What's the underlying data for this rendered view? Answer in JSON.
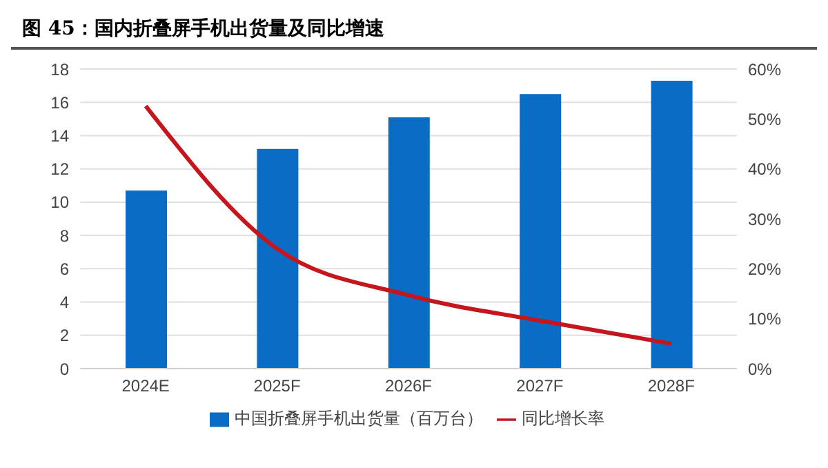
{
  "chart_data": {
    "type": "bar",
    "title": "图 45：国内折叠屏手机出货量及同比增速",
    "categories": [
      "2024E",
      "2025F",
      "2026F",
      "2027F",
      "2028F"
    ],
    "series": [
      {
        "name": "中国折叠屏手机出货量（百万台）",
        "color": "#0a6cc4",
        "values": [
          10.7,
          13.2,
          15.1,
          16.5,
          17.3
        ]
      },
      {
        "name": "同比增长率",
        "type": "line",
        "axis": "y2",
        "color": "#c4161c",
        "values": [
          52.6,
          24,
          14.7,
          9.6,
          5.0
        ]
      }
    ],
    "ylim": [
      0,
      18
    ],
    "yticks": [
      0,
      2,
      4,
      6,
      8,
      10,
      12,
      14,
      16,
      18
    ],
    "y2lim": [
      0,
      60
    ],
    "y2ticks": [
      {
        "value": 0,
        "label": "0%"
      },
      {
        "value": 10,
        "label": "10%"
      },
      {
        "value": 20,
        "label": "20%"
      },
      {
        "value": 30,
        "label": "30%"
      },
      {
        "value": 40,
        "label": "40%"
      },
      {
        "value": 50,
        "label": "50%"
      },
      {
        "value": 60,
        "label": "60%"
      }
    ],
    "grid": "y",
    "legend": "bottom",
    "marker": "none",
    "line_style": "solid"
  }
}
